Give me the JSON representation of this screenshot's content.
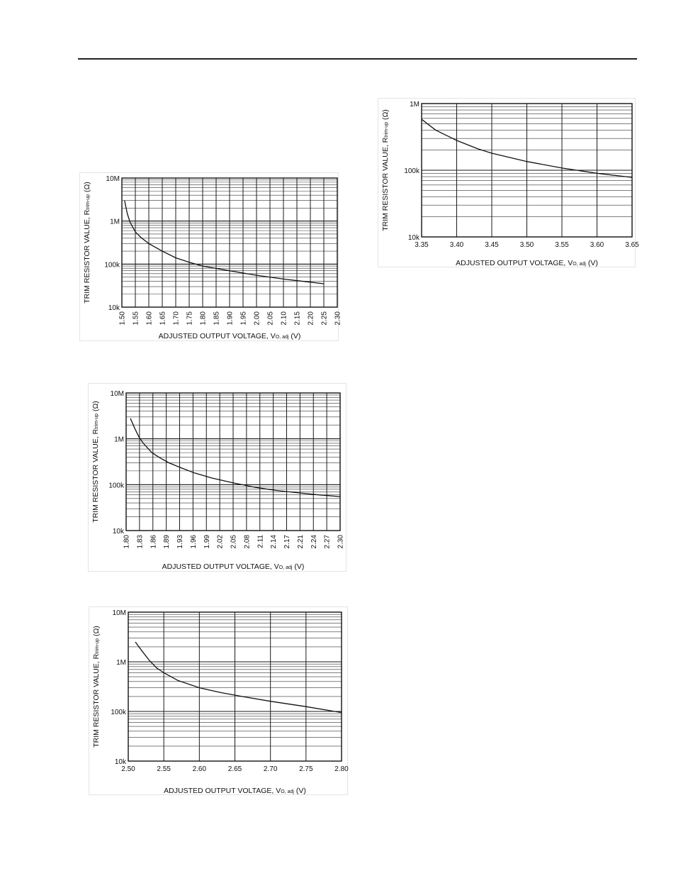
{
  "chart_data": [
    {
      "type": "line",
      "title": "",
      "xlabel": "ADJUSTED OUTPUT VOLTAGE, Vo, adj (V)",
      "xlabel_parts": [
        "ADJUSTED OUTPUT VOLTAGE, V",
        "O, adj",
        " (V)"
      ],
      "ylabel": "TRIM RESISTOR VALUE, Rtrim-up (Ω)",
      "ylabel_parts": [
        "TRIM RESISTOR VALUE, R",
        "trim-up",
        " (Ω)"
      ],
      "x_scale": "linear",
      "y_scale": "log",
      "xlim": [
        1.5,
        2.3
      ],
      "ylim": [
        10000,
        10000000
      ],
      "x_ticks": [
        "1.50",
        "1.55",
        "1.60",
        "1.65",
        "1.70",
        "1.75",
        "1.80",
        "1.85",
        "1.90",
        "1.95",
        "2.00",
        "2.05",
        "2.10",
        "2.15",
        "2.20",
        "2.25",
        "2.30"
      ],
      "x_tick_rotation": "vertical",
      "y_ticks": [
        {
          "value": 10000000,
          "label": "10M"
        },
        {
          "value": 1000000,
          "label": "1M"
        },
        {
          "value": 100000,
          "label": "100k"
        },
        {
          "value": 10000,
          "label": "10k"
        }
      ],
      "grid": true,
      "series": [
        {
          "x": [
            1.51,
            1.52,
            1.53,
            1.55,
            1.57,
            1.6,
            1.65,
            1.7,
            1.75,
            1.8,
            1.9,
            2.0,
            2.1,
            2.2,
            2.25
          ],
          "y": [
            3000000,
            1500000,
            950000,
            560000,
            420000,
            300000,
            200000,
            140000,
            110000,
            90000,
            70000,
            55000,
            45000,
            38000,
            35000
          ]
        }
      ]
    },
    {
      "type": "line",
      "title": "",
      "xlabel": "ADJUSTED OUTPUT VOLTAGE, Vo, adj (V)",
      "xlabel_parts": [
        "ADJUSTED OUTPUT VOLTAGE, V",
        "O, adj",
        " (V)"
      ],
      "ylabel": "TRIM RESISTOR VALUE, Rtrim-up (Ω)",
      "ylabel_parts": [
        "TRIM RESISTOR VALUE, R",
        "trim-up",
        " (Ω)"
      ],
      "x_scale": "linear",
      "y_scale": "log",
      "xlim": [
        1.8,
        2.3
      ],
      "ylim": [
        10000,
        10000000
      ],
      "x_ticks": [
        "1.80",
        "1.83",
        "1.86",
        "1.89",
        "1.93",
        "1.96",
        "1.99",
        "2.02",
        "2.05",
        "2.08",
        "2.11",
        "2.14",
        "2.17",
        "2.21",
        "2.24",
        "2.27",
        "2.30"
      ],
      "x_tick_rotation": "vertical",
      "y_ticks": [
        {
          "value": 10000000,
          "label": "10M"
        },
        {
          "value": 1000000,
          "label": "1M"
        },
        {
          "value": 100000,
          "label": "100k"
        },
        {
          "value": 10000,
          "label": "10k"
        }
      ],
      "grid": true,
      "series": [
        {
          "x": [
            1.81,
            1.82,
            1.83,
            1.84,
            1.86,
            1.88,
            1.9,
            1.93,
            1.96,
            2.0,
            2.05,
            2.1,
            2.15,
            2.2,
            2.25,
            2.3
          ],
          "y": [
            2800000,
            1700000,
            1100000,
            800000,
            500000,
            380000,
            300000,
            230000,
            180000,
            140000,
            110000,
            88000,
            75000,
            67000,
            60000,
            55000
          ]
        }
      ]
    },
    {
      "type": "line",
      "title": "",
      "xlabel": "ADJUSTED OUTPUT VOLTAGE, Vo, adj (V)",
      "xlabel_parts": [
        "ADJUSTED OUTPUT VOLTAGE, V",
        "O, adj",
        " (V)"
      ],
      "ylabel": "TRIM RESISTOR VALUE, Rtrim-up (Ω)",
      "ylabel_parts": [
        "TRIM RESISTOR VALUE, R",
        "trim-up",
        " (Ω)"
      ],
      "x_scale": "linear",
      "y_scale": "log",
      "xlim": [
        2.5,
        2.8
      ],
      "ylim": [
        10000,
        10000000
      ],
      "x_ticks": [
        "2.50",
        "2.55",
        "2.60",
        "2.65",
        "2.70",
        "2.75",
        "2.80"
      ],
      "x_tick_rotation": "horizontal",
      "y_ticks": [
        {
          "value": 10000000,
          "label": "10M"
        },
        {
          "value": 1000000,
          "label": "1M"
        },
        {
          "value": 100000,
          "label": "100k"
        },
        {
          "value": 10000,
          "label": "10k"
        }
      ],
      "grid": true,
      "series": [
        {
          "x": [
            2.51,
            2.52,
            2.53,
            2.54,
            2.55,
            2.57,
            2.6,
            2.63,
            2.66,
            2.7,
            2.75,
            2.8
          ],
          "y": [
            2500000,
            1600000,
            1050000,
            750000,
            600000,
            420000,
            300000,
            240000,
            200000,
            160000,
            125000,
            95000
          ]
        }
      ]
    },
    {
      "type": "line",
      "title": "",
      "xlabel": "ADJUSTED OUTPUT VOLTAGE, Vo, adj (V)",
      "xlabel_parts": [
        "ADJUSTED OUTPUT VOLTAGE, V",
        "O, adj",
        " (V)"
      ],
      "ylabel": "TRIM RESISTOR VALUE, Rtrim-up (Ω)",
      "ylabel_parts": [
        "TRIM RESISTOR VALUE, R",
        "trim-up",
        " (Ω)"
      ],
      "x_scale": "linear",
      "y_scale": "log",
      "xlim": [
        3.35,
        3.65
      ],
      "ylim": [
        10000,
        1000000
      ],
      "x_ticks": [
        "3.35",
        "3.40",
        "3.45",
        "3.50",
        "3.55",
        "3.60",
        "3.65"
      ],
      "x_tick_rotation": "horizontal",
      "y_ticks": [
        {
          "value": 1000000,
          "label": "1M"
        },
        {
          "value": 100000,
          "label": "100k"
        },
        {
          "value": 10000,
          "label": "10k"
        }
      ],
      "grid": true,
      "series": [
        {
          "x": [
            3.35,
            3.37,
            3.4,
            3.43,
            3.45,
            3.5,
            3.55,
            3.6,
            3.65
          ],
          "y": [
            580000,
            400000,
            280000,
            210000,
            180000,
            135000,
            108000,
            90000,
            78000
          ]
        }
      ]
    }
  ]
}
